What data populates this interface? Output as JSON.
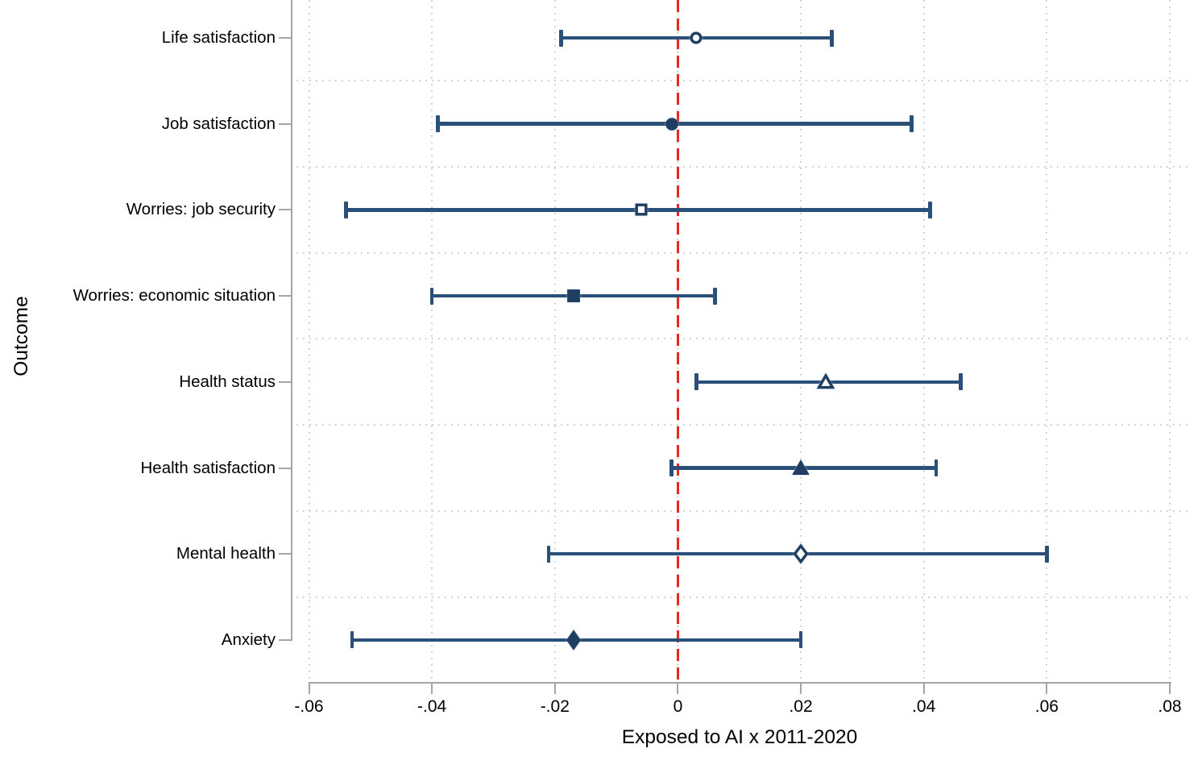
{
  "chart_data": {
    "type": "scatter",
    "subtype": "coefficient-forest-plot",
    "title": "",
    "xlabel": "Exposed to AI x 2011-2020",
    "ylabel": "Outcome",
    "xlim": [
      -0.068,
      0.083
    ],
    "x_tick_values": [
      -0.06,
      -0.04,
      -0.02,
      0,
      0.02,
      0.04,
      0.06,
      0.08
    ],
    "x_tick_labels": [
      "-.06",
      "-.04",
      "-.02",
      "0",
      ".02",
      ".04",
      ".06",
      ".08"
    ],
    "grid": true,
    "legend": false,
    "reference_line_x": 0,
    "points": [
      {
        "outcome": "Life satisfaction",
        "marker": "circle",
        "fill": "hollow",
        "estimate": 0.003,
        "ci_low": -0.019,
        "ci_high": 0.025
      },
      {
        "outcome": "Job satisfaction",
        "marker": "circle",
        "fill": "filled",
        "estimate": -0.001,
        "ci_low": -0.039,
        "ci_high": 0.038
      },
      {
        "outcome": "Worries: job security",
        "marker": "square",
        "fill": "hollow",
        "estimate": -0.006,
        "ci_low": -0.054,
        "ci_high": 0.041
      },
      {
        "outcome": "Worries: economic situation",
        "marker": "square",
        "fill": "filled",
        "estimate": -0.017,
        "ci_low": -0.04,
        "ci_high": 0.006
      },
      {
        "outcome": "Health status",
        "marker": "triangle",
        "fill": "hollow",
        "estimate": 0.024,
        "ci_low": 0.003,
        "ci_high": 0.046
      },
      {
        "outcome": "Health satisfaction",
        "marker": "triangle",
        "fill": "filled",
        "estimate": 0.02,
        "ci_low": -0.001,
        "ci_high": 0.042
      },
      {
        "outcome": "Mental health",
        "marker": "diamond",
        "fill": "hollow",
        "estimate": 0.02,
        "ci_low": -0.021,
        "ci_high": 0.06
      },
      {
        "outcome": "Anxiety",
        "marker": "diamond",
        "fill": "filled",
        "estimate": -0.017,
        "ci_low": -0.053,
        "ci_high": 0.02
      }
    ]
  },
  "colors": {
    "ci_line": "#2b5078",
    "marker": "#1f3e61",
    "reference_line": "#e8271d",
    "grid_dot": "#c7c7c7",
    "axis": "#a6a6a6",
    "text": "#000000",
    "marker_hollow_fill": "#ffffff"
  },
  "axes": {
    "x_title": "Exposed to AI x 2011-2020",
    "y_title": "Outcome"
  }
}
